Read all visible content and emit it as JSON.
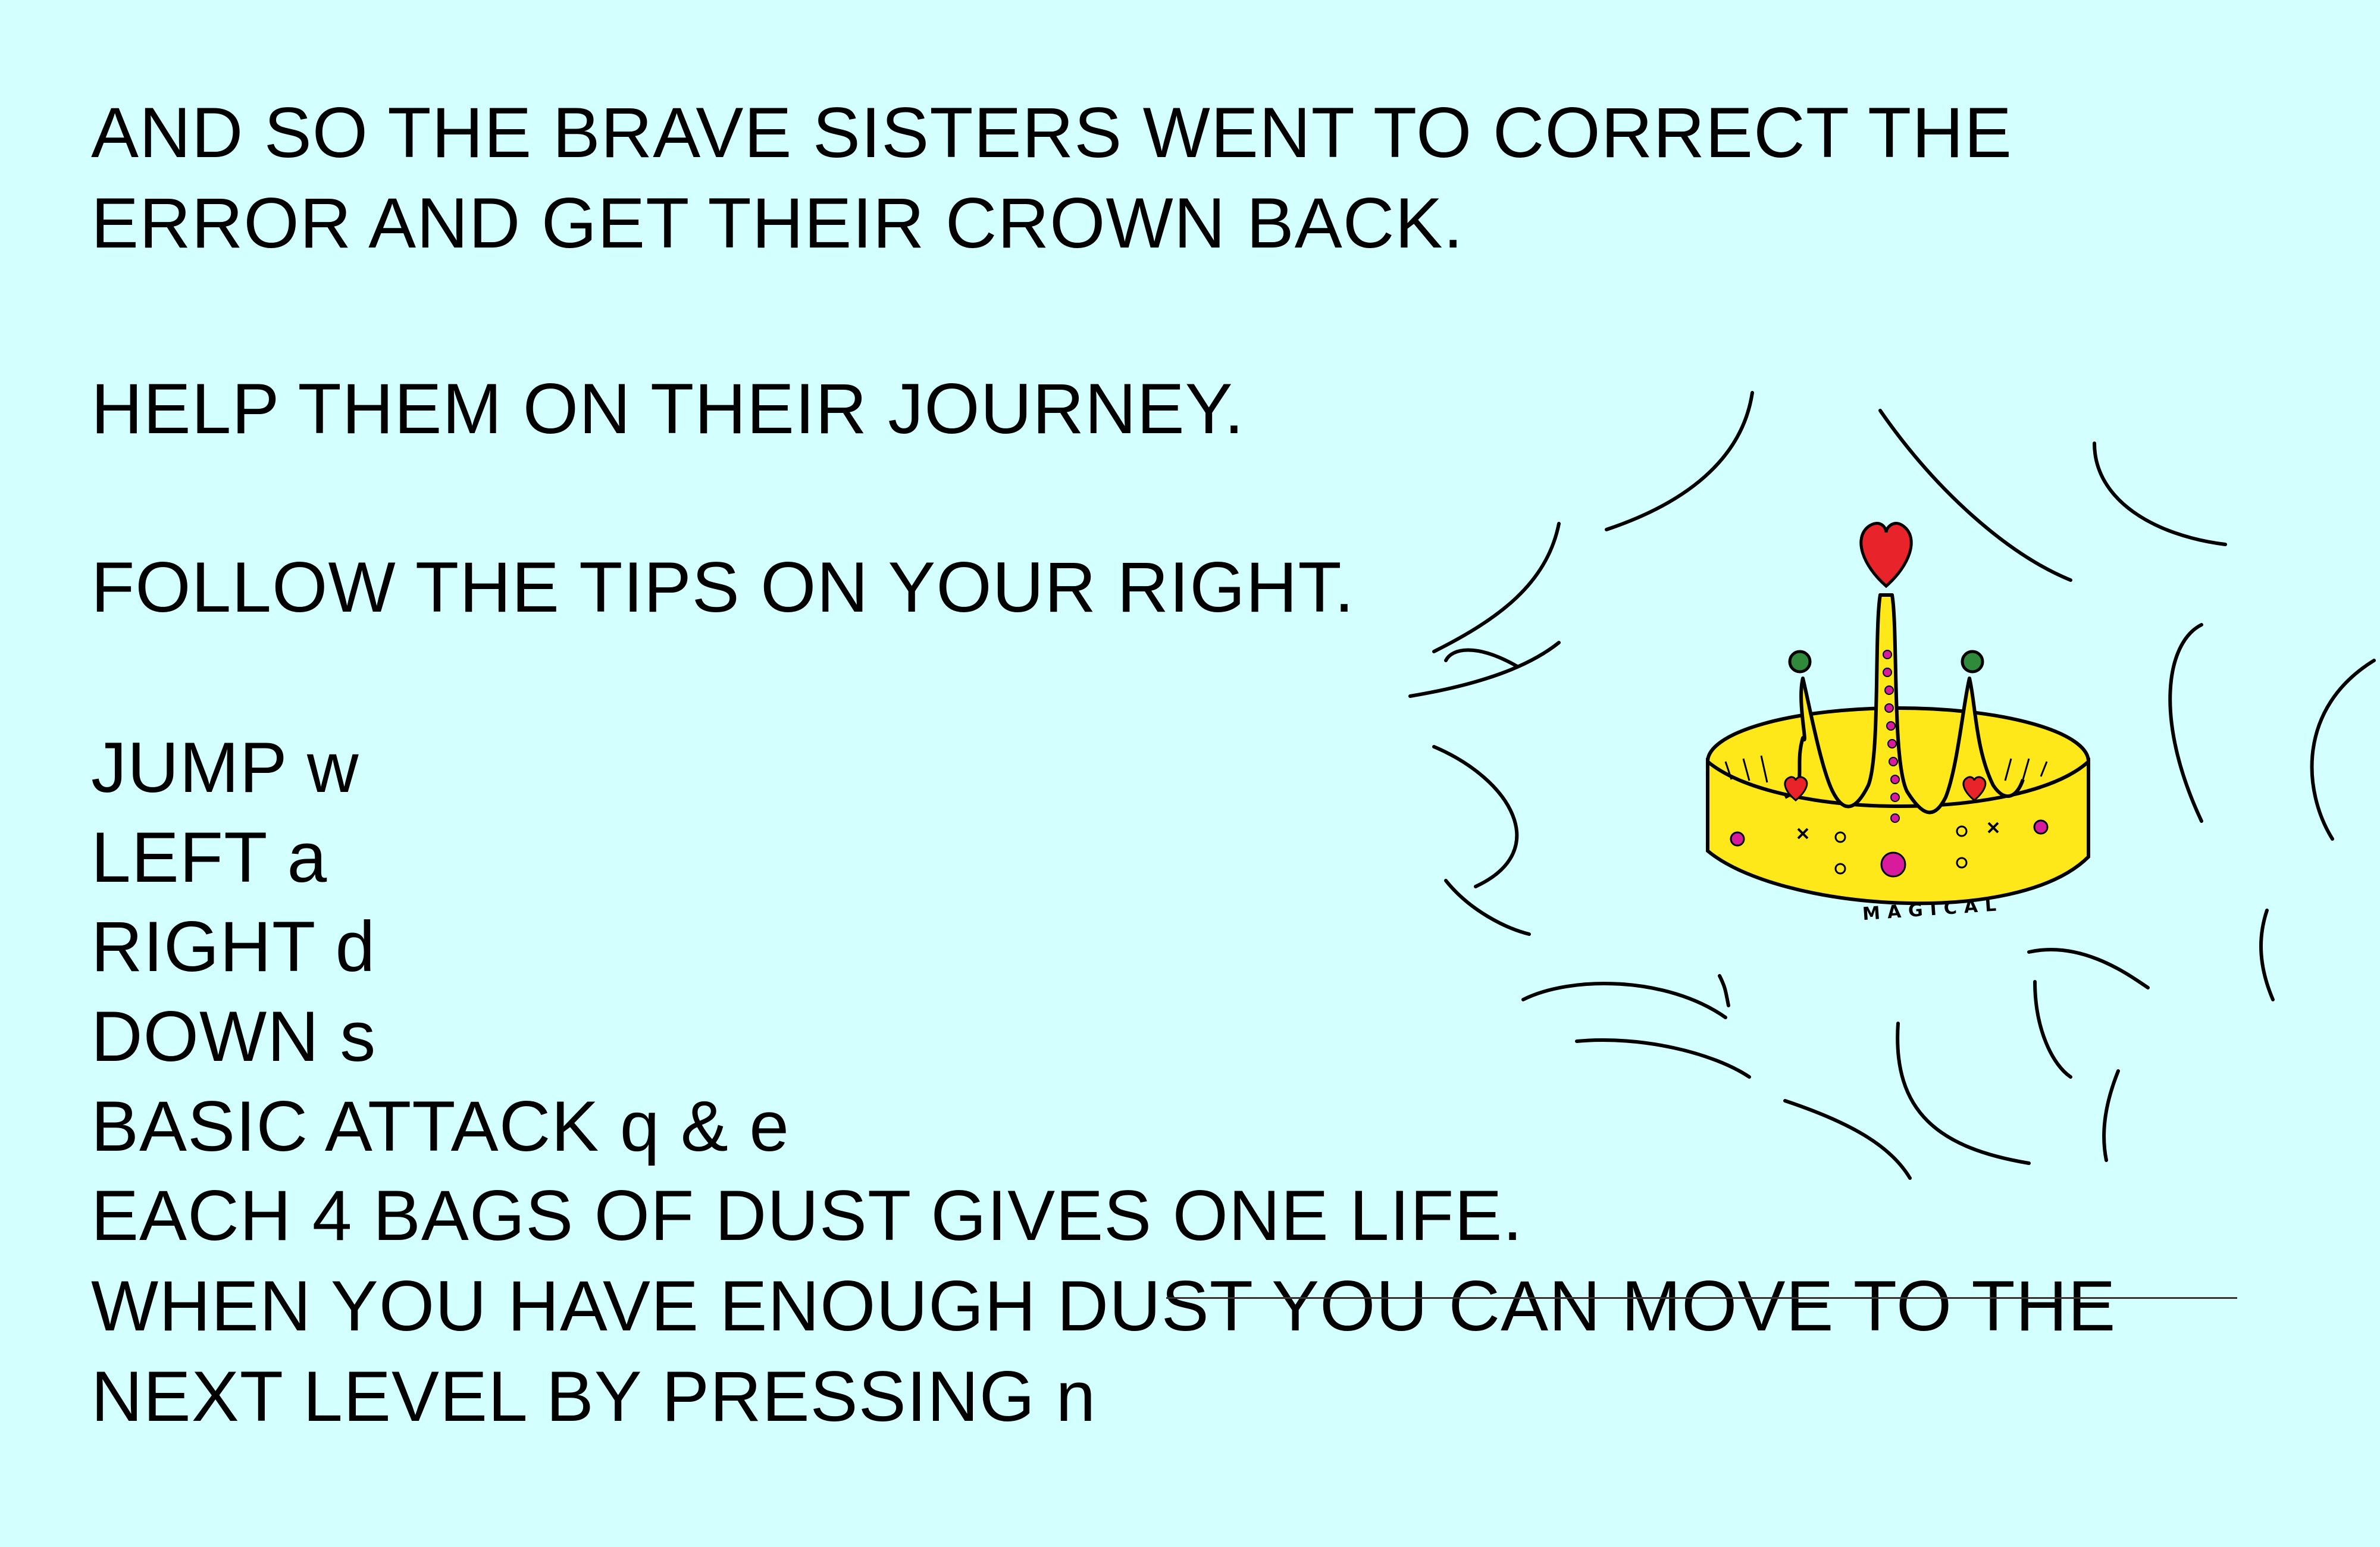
{
  "story": {
    "line1": "AND SO THE BRAVE SISTERS WENT TO CORRECT THE",
    "line2": "ERROR AND GET THEIR CROWN BACK.",
    "line3": "HELP THEM ON THEIR JOURNEY.",
    "line4": "FOLLOW THE TIPS ON YOUR RIGHT."
  },
  "controls": [
    {
      "text": "JUMP w"
    },
    {
      "text": "LEFT a"
    },
    {
      "text": "RIGHT d"
    },
    {
      "text": "DOWN s"
    },
    {
      "text": "BASIC ATTACK q & e"
    }
  ],
  "tips": {
    "dust_life": "EACH 4 BAGS OF DUST GIVES ONE LIFE.",
    "next_level_1": "WHEN YOU HAVE ENOUGH DUST YOU CAN MOVE TO THE",
    "next_level_2": "NEXT LEVEL BY PRESSING n"
  },
  "crown": {
    "label": "MAGICAL",
    "icon": "magical-crown-icon"
  },
  "colors": {
    "background": "#d4ffff",
    "text": "#000000",
    "crown_gold": "#ffe81a",
    "heart_red": "#e8242a",
    "jewel_pink": "#d81b9c",
    "jewel_green": "#2f8a3c"
  }
}
